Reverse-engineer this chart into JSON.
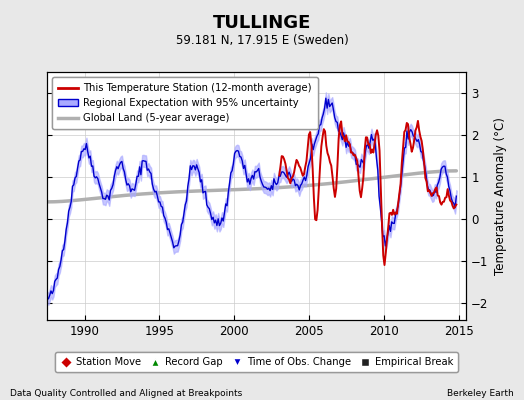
{
  "title": "TULLINGE",
  "subtitle": "59.181 N, 17.915 E (Sweden)",
  "ylabel": "Temperature Anomaly (°C)",
  "footer_left": "Data Quality Controlled and Aligned at Breakpoints",
  "footer_right": "Berkeley Earth",
  "xlim": [
    1987.5,
    2015.5
  ],
  "ylim": [
    -2.4,
    3.5
  ],
  "yticks": [
    -2,
    -1,
    0,
    1,
    2,
    3
  ],
  "xticks": [
    1990,
    1995,
    2000,
    2005,
    2010,
    2015
  ],
  "bg_color": "#e8e8e8",
  "plot_bg_color": "#ffffff",
  "red_color": "#cc0000",
  "blue_color": "#0000cc",
  "blue_fill_color": "#aaaaff",
  "gray_color": "#b0b0b0",
  "legend_items": [
    {
      "label": "This Temperature Station (12-month average)",
      "color": "#cc0000"
    },
    {
      "label": "Regional Expectation with 95% uncertainty",
      "color": "#0000cc"
    },
    {
      "label": "Global Land (5-year average)",
      "color": "#b0b0b0"
    }
  ],
  "legend2_items": [
    {
      "label": "Station Move",
      "marker": "D",
      "color": "#cc0000"
    },
    {
      "label": "Record Gap",
      "marker": "^",
      "color": "#008800"
    },
    {
      "label": "Time of Obs. Change",
      "marker": "v",
      "color": "#0000cc"
    },
    {
      "label": "Empirical Break",
      "marker": "s",
      "color": "#222222"
    }
  ]
}
